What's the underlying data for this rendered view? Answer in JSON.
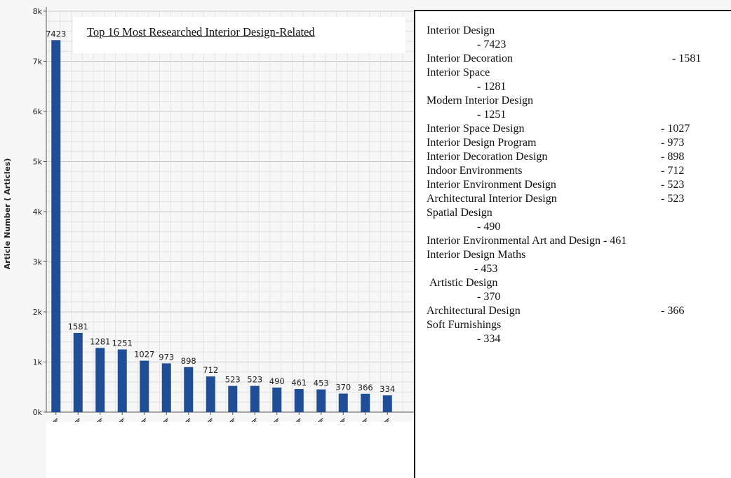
{
  "chart_data": {
    "type": "bar",
    "title": "Top 16 Most Researched Interior Design-Related",
    "ylabel": "Article Number ( Articles)",
    "ylim": [
      0,
      8000
    ],
    "yticks": [
      "0k",
      "1k",
      "2k",
      "3k",
      "4k",
      "5k",
      "6k",
      "7k",
      "8k"
    ],
    "grid": true,
    "color": "#1f4e96",
    "categories": [
      "Interior Design",
      "Interior Decoration",
      "Interior Space",
      "Modern Interior Design",
      "Interior Space Design",
      "Interior Design Program",
      "Interior Decoration Design",
      "Indoor Environments",
      "Interior Environment Design",
      "Architectural Interior Design",
      "Spatial Design",
      "Interior Environmental Art and Design",
      "Interior Design Maths",
      "Artistic Design",
      "Architectural Design",
      "Soft Furnishings"
    ],
    "values": [
      7423,
      1581,
      1281,
      1251,
      1027,
      973,
      898,
      712,
      523,
      523,
      490,
      461,
      453,
      370,
      366,
      334
    ],
    "data_labels": [
      "7423",
      "1581",
      "1281",
      "1251",
      "1027",
      "973",
      "898",
      "712",
      "523",
      "523",
      "490",
      "461",
      "453",
      "370",
      "366",
      "334"
    ]
  },
  "legend": {
    "items": [
      {
        "name": "Interior Design",
        "value": "- 7423"
      },
      {
        "name": "Interior Decoration",
        "value": "- 1581"
      },
      {
        "name": "Interior Space",
        "value": "- 1281"
      },
      {
        "name": "Modern Interior Design",
        "value": "- 1251"
      },
      {
        "name": "Interior Space Design",
        "value": "- 1027"
      },
      {
        "name": "Interior Design Program",
        "value": "- 973"
      },
      {
        "name": "Interior Decoration Design",
        "value": "- 898"
      },
      {
        "name": "Indoor Environments",
        "value": "- 712"
      },
      {
        "name": "Interior Environment Design",
        "value": "- 523"
      },
      {
        "name": "Architectural Interior Design",
        "value": "- 523"
      },
      {
        "name": "Spatial Design",
        "value": "- 490"
      },
      {
        "name": "Interior Environmental Art and Design",
        "value": "- 461"
      },
      {
        "name": "Interior Design Maths",
        "value": "- 453"
      },
      {
        "name": "Artistic Design",
        "value": "- 370"
      },
      {
        "name": "Architectural Design",
        "value": "- 366"
      },
      {
        "name": "Soft Furnishings",
        "value": "- 334"
      }
    ]
  }
}
